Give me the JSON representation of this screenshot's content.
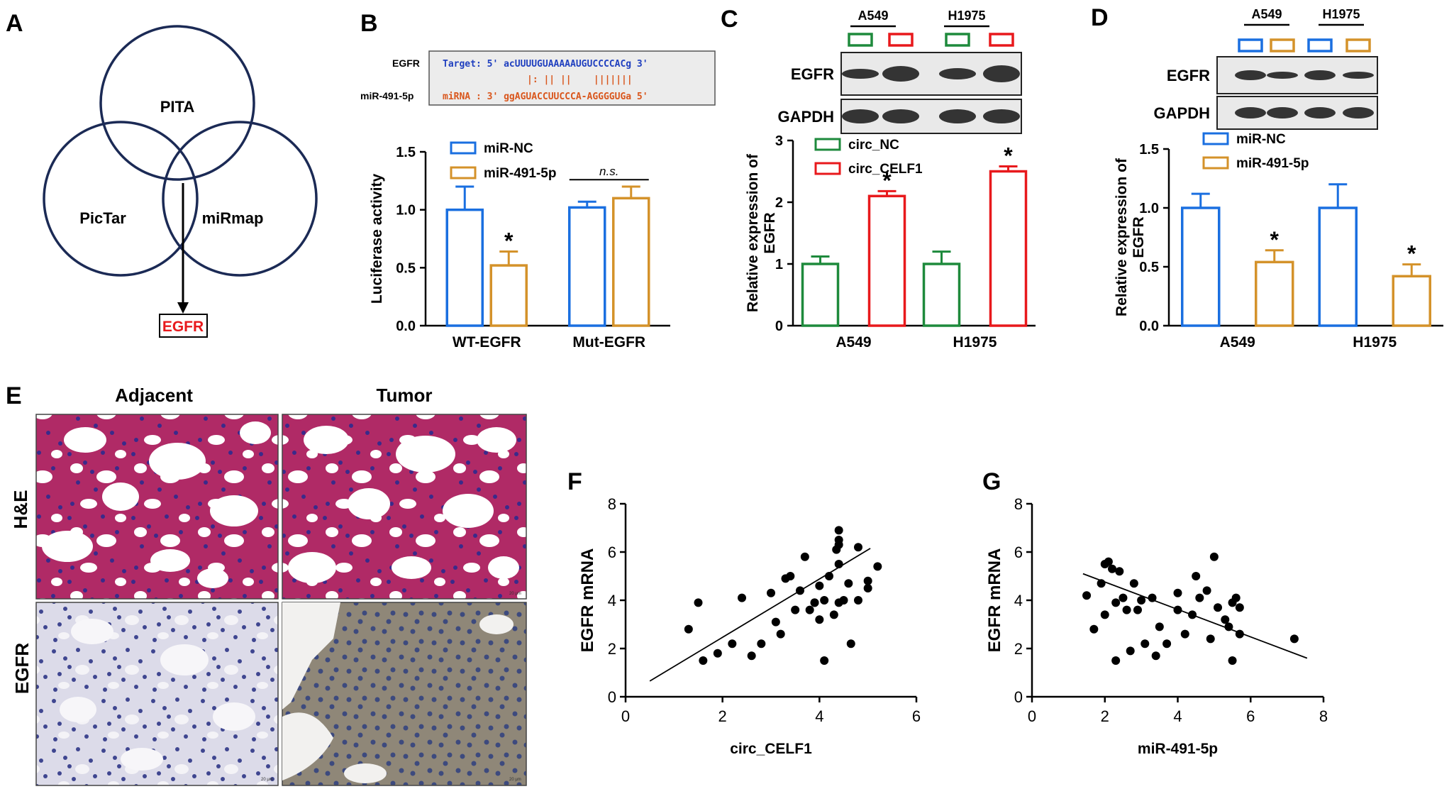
{
  "panels": {
    "A": {
      "letter": "A",
      "sets": [
        "PITA",
        "PicTar",
        "miRmap"
      ],
      "result": "EGFR"
    },
    "B": {
      "letter": "B",
      "target_gene": "EGFR",
      "mirna_name": "miR-491-5p",
      "target_seq": "Target: 5' acUUUUGUAAAAAUGUCCCCACg 3'",
      "pairing": "|: || ||    |||||||",
      "mirna_seq": "miRNA : 3' ggAGUACCUUCCCA-AGGGGUGa 5'",
      "ns_label": "n.s."
    },
    "C": {
      "letter": "C",
      "cell_lines": [
        "A549",
        "H1975"
      ],
      "blots": [
        "EGFR",
        "GAPDH"
      ]
    },
    "D": {
      "letter": "D",
      "cell_lines": [
        "A549",
        "H1975"
      ],
      "blots": [
        "EGFR",
        "GAPDH"
      ]
    },
    "E": {
      "letter": "E",
      "columns": [
        "Adjacent",
        "Tumor"
      ],
      "rows": [
        "H&E",
        "EGFR"
      ],
      "scalebar_label": "20 μm"
    },
    "F": {
      "letter": "F"
    },
    "G": {
      "letter": "G"
    }
  },
  "colors": {
    "blue": "#1a6fe0",
    "orange": "#d4922a",
    "green": "#1e8a3c",
    "red": "#e8191c",
    "venn": "#1b2a55",
    "seq_blue": "#1f3fbf",
    "seq_orange": "#d9561c",
    "he_bg": "#f1cfe2",
    "he_tissue": "#a8285e",
    "ihc_bg": "#e6e3ec",
    "ihc_tissue": "#5a5f93",
    "ihc_tumor": "#9c8f70"
  },
  "chart_data": [
    {
      "id": "B",
      "type": "bar",
      "categories": [
        "WT-EGFR",
        "Mut-EGFR"
      ],
      "series": [
        {
          "name": "miR-NC",
          "values": [
            1.0,
            1.02
          ],
          "errors": [
            0.2,
            0.05
          ]
        },
        {
          "name": "miR-491-5p",
          "values": [
            0.52,
            1.1
          ],
          "errors": [
            0.12,
            0.1
          ]
        }
      ],
      "significance": [
        "*",
        ""
      ],
      "ylabel": "Luciferase activity",
      "ylim": [
        0,
        1.5
      ],
      "yticks": [
        "0.0",
        "0.5",
        "1.0",
        "1.5"
      ]
    },
    {
      "id": "C",
      "type": "bar",
      "categories": [
        "A549",
        "H1975"
      ],
      "series": [
        {
          "name": "circ_NC",
          "values": [
            1.0,
            1.0
          ],
          "errors": [
            0.12,
            0.2
          ]
        },
        {
          "name": "circ_CELF1",
          "values": [
            2.1,
            2.5
          ],
          "errors": [
            0.08,
            0.08
          ]
        }
      ],
      "significance": [
        "*",
        "*"
      ],
      "ylabel": "Relative expression of EGFR",
      "ylim": [
        0,
        3
      ],
      "yticks": [
        "0",
        "1",
        "2",
        "3"
      ]
    },
    {
      "id": "D",
      "type": "bar",
      "categories": [
        "A549",
        "H1975"
      ],
      "series": [
        {
          "name": "miR-NC",
          "values": [
            1.0,
            1.0
          ],
          "errors": [
            0.12,
            0.2
          ]
        },
        {
          "name": "miR-491-5p",
          "values": [
            0.54,
            0.42
          ],
          "errors": [
            0.1,
            0.1
          ]
        }
      ],
      "significance": [
        "*",
        "*"
      ],
      "ylabel": "Relative expression of EGFR",
      "ylim": [
        0,
        1.5
      ],
      "yticks": [
        "0.0",
        "0.5",
        "1.0",
        "1.5"
      ]
    },
    {
      "id": "F",
      "type": "scatter",
      "xlabel": "circ_CELF1",
      "ylabel": "EGFR mRNA",
      "xlim": [
        0,
        6
      ],
      "ylim": [
        0,
        8
      ],
      "xticks": [
        "0",
        "2",
        "4",
        "6"
      ],
      "yticks": [
        "0",
        "2",
        "4",
        "6",
        "8"
      ],
      "points": [
        [
          1.3,
          2.8
        ],
        [
          1.5,
          3.9
        ],
        [
          1.6,
          1.5
        ],
        [
          1.9,
          1.8
        ],
        [
          2.2,
          2.2
        ],
        [
          2.4,
          4.1
        ],
        [
          2.6,
          1.7
        ],
        [
          2.8,
          2.2
        ],
        [
          3.0,
          4.3
        ],
        [
          3.1,
          3.1
        ],
        [
          3.2,
          2.6
        ],
        [
          3.3,
          4.9
        ],
        [
          3.4,
          5.0
        ],
        [
          3.5,
          3.6
        ],
        [
          3.6,
          4.4
        ],
        [
          3.7,
          5.8
        ],
        [
          3.8,
          3.6
        ],
        [
          3.9,
          3.9
        ],
        [
          4.0,
          3.2
        ],
        [
          4.0,
          4.6
        ],
        [
          4.1,
          4.0
        ],
        [
          4.1,
          1.5
        ],
        [
          4.2,
          5.0
        ],
        [
          4.3,
          3.4
        ],
        [
          4.35,
          6.1
        ],
        [
          4.4,
          6.5
        ],
        [
          4.4,
          6.3
        ],
        [
          4.4,
          6.9
        ],
        [
          4.4,
          5.5
        ],
        [
          4.5,
          4.0
        ],
        [
          4.6,
          4.7
        ],
        [
          4.65,
          2.2
        ],
        [
          4.8,
          6.2
        ],
        [
          4.8,
          4.0
        ],
        [
          5.0,
          4.5
        ],
        [
          5.0,
          4.8
        ],
        [
          5.2,
          5.4
        ],
        [
          4.4,
          3.9
        ],
        [
          3.9,
          3.9
        ]
      ],
      "fit": [
        [
          0.5,
          0.65
        ],
        [
          5.05,
          6.15
        ]
      ]
    },
    {
      "id": "G",
      "type": "scatter",
      "xlabel": "miR-491-5p",
      "ylabel": "EGFR mRNA",
      "xlim": [
        0,
        8
      ],
      "ylim": [
        0,
        8
      ],
      "xticks": [
        "0",
        "2",
        "4",
        "6",
        "8"
      ],
      "yticks": [
        "0",
        "2",
        "4",
        "6",
        "8"
      ],
      "points": [
        [
          1.5,
          4.2
        ],
        [
          1.7,
          2.8
        ],
        [
          1.9,
          4.7
        ],
        [
          2.0,
          5.5
        ],
        [
          2.0,
          3.4
        ],
        [
          2.1,
          5.6
        ],
        [
          2.2,
          5.3
        ],
        [
          2.3,
          1.5
        ],
        [
          2.3,
          3.9
        ],
        [
          2.4,
          5.2
        ],
        [
          2.5,
          4.1
        ],
        [
          2.6,
          3.6
        ],
        [
          2.7,
          1.9
        ],
        [
          2.8,
          4.7
        ],
        [
          2.9,
          3.6
        ],
        [
          3.0,
          4.0
        ],
        [
          3.1,
          2.2
        ],
        [
          3.3,
          4.1
        ],
        [
          3.4,
          1.7
        ],
        [
          3.5,
          2.9
        ],
        [
          3.7,
          2.2
        ],
        [
          4.0,
          4.3
        ],
        [
          4.0,
          3.6
        ],
        [
          4.2,
          2.6
        ],
        [
          4.4,
          3.4
        ],
        [
          4.5,
          5.0
        ],
        [
          4.6,
          4.1
        ],
        [
          4.8,
          4.4
        ],
        [
          4.9,
          2.4
        ],
        [
          5.0,
          5.8
        ],
        [
          5.1,
          3.7
        ],
        [
          5.3,
          3.2
        ],
        [
          5.4,
          2.9
        ],
        [
          5.5,
          1.5
        ],
        [
          5.5,
          3.9
        ],
        [
          5.6,
          4.1
        ],
        [
          5.7,
          2.6
        ],
        [
          5.7,
          3.7
        ],
        [
          7.2,
          2.4
        ]
      ],
      "fit": [
        [
          1.4,
          5.1
        ],
        [
          7.55,
          1.6
        ]
      ]
    }
  ]
}
